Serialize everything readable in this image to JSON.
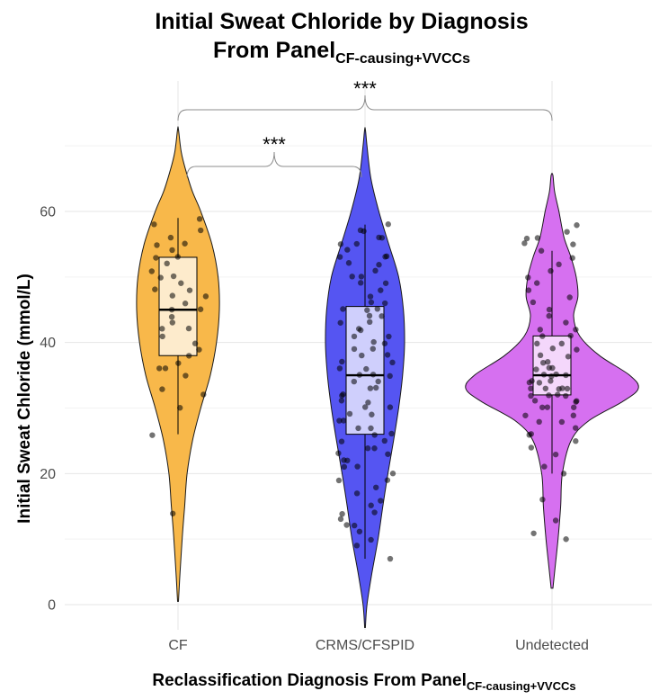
{
  "chart_data": {
    "type": "violin",
    "title_main": "Initial Sweat Chloride by Diagnosis",
    "title_prefix": "From Panel",
    "title_subscript": "CF-causing+VVCCs",
    "xlabel_main": "Reclassification Diagnosis From Panel",
    "xlabel_subscript": "CF-causing+VVCCs",
    "ylabel": "Initial Sweat Chloride (mmol/L)",
    "ylim": [
      -3,
      73
    ],
    "yticks": [
      0,
      20,
      40,
      60
    ],
    "categories": [
      "CF",
      "CRMS/CFSPID",
      "Undetected"
    ],
    "colors": [
      "#F8B84A",
      "#5555F2",
      "#D670F0"
    ],
    "groups": [
      {
        "name": "CF",
        "box": {
          "q1": 38,
          "median": 45,
          "q3": 53,
          "whisker_low": 26,
          "whisker_high": 59
        },
        "violin_range": [
          0.5,
          72.5
        ],
        "density": [
          [
            0.5,
            0.01
          ],
          [
            5,
            0.05
          ],
          [
            10,
            0.1
          ],
          [
            15,
            0.16
          ],
          [
            20,
            0.22
          ],
          [
            25,
            0.35
          ],
          [
            30,
            0.55
          ],
          [
            35,
            0.78
          ],
          [
            40,
            0.93
          ],
          [
            45,
            1.0
          ],
          [
            50,
            0.97
          ],
          [
            55,
            0.82
          ],
          [
            60,
            0.55
          ],
          [
            63,
            0.35
          ],
          [
            66,
            0.2
          ],
          [
            69,
            0.08
          ],
          [
            72.5,
            0.01
          ]
        ],
        "points": [
          59,
          58,
          57,
          56,
          55,
          55,
          54,
          53,
          53,
          52,
          51,
          50,
          50,
          49,
          48,
          48,
          47,
          47,
          46,
          45,
          45,
          44,
          43,
          42,
          42,
          41,
          40,
          39,
          38,
          37,
          36,
          36,
          35,
          33,
          32,
          30,
          26,
          14
        ]
      },
      {
        "name": "CRMS/CFSPID",
        "box": {
          "q1": 26,
          "median": 35,
          "q3": 45.5,
          "whisker_low": 7,
          "whisker_high": 58
        },
        "violin_range": [
          -3.5,
          72.5
        ],
        "density": [
          [
            -3.5,
            0.01
          ],
          [
            0,
            0.05
          ],
          [
            5,
            0.18
          ],
          [
            10,
            0.33
          ],
          [
            15,
            0.45
          ],
          [
            20,
            0.58
          ],
          [
            25,
            0.72
          ],
          [
            30,
            0.85
          ],
          [
            35,
            0.95
          ],
          [
            40,
            1.0
          ],
          [
            45,
            0.97
          ],
          [
            50,
            0.85
          ],
          [
            55,
            0.6
          ],
          [
            60,
            0.35
          ],
          [
            65,
            0.15
          ],
          [
            70,
            0.05
          ],
          [
            72.5,
            0.01
          ]
        ],
        "points": [
          58,
          57,
          57,
          56,
          56,
          55,
          55,
          54,
          53,
          53,
          53,
          52,
          52,
          51,
          50,
          50,
          49,
          49,
          48,
          47,
          46,
          46,
          45,
          45,
          45,
          44,
          44,
          43,
          43,
          42,
          42,
          41,
          41,
          40,
          40,
          39,
          39,
          38,
          38,
          37,
          37,
          36,
          36,
          35,
          35,
          35,
          34,
          34,
          33,
          33,
          32,
          32,
          31,
          31,
          30,
          30,
          29,
          29,
          28,
          28,
          27,
          27,
          26,
          26,
          25,
          25,
          24,
          24,
          23,
          23,
          22,
          22,
          21,
          21,
          20,
          19,
          19,
          18,
          17,
          16,
          15,
          14,
          14,
          13,
          12,
          12,
          11,
          10,
          9,
          7
        ]
      },
      {
        "name": "Undetected",
        "box": {
          "q1": 32,
          "median": 35,
          "q3": 41,
          "whisker_low": 20,
          "whisker_high": 54
        },
        "violin_range": [
          2.5,
          65.5
        ],
        "density": [
          [
            2.5,
            0.01
          ],
          [
            5,
            0.03
          ],
          [
            10,
            0.07
          ],
          [
            15,
            0.1
          ],
          [
            20,
            0.12
          ],
          [
            25,
            0.22
          ],
          [
            28,
            0.42
          ],
          [
            31,
            0.82
          ],
          [
            33,
            1.0
          ],
          [
            35,
            0.9
          ],
          [
            38,
            0.55
          ],
          [
            41,
            0.32
          ],
          [
            44,
            0.25
          ],
          [
            47,
            0.3
          ],
          [
            50,
            0.28
          ],
          [
            53,
            0.22
          ],
          [
            56,
            0.14
          ],
          [
            60,
            0.08
          ],
          [
            63,
            0.03
          ],
          [
            65.5,
            0.01
          ]
        ],
        "points": [
          58,
          57,
          56,
          56,
          55,
          55,
          54,
          53,
          52,
          51,
          50,
          49,
          48,
          47,
          46,
          45,
          44,
          43,
          42,
          42,
          41,
          41,
          40,
          40,
          39,
          39,
          38,
          38,
          37,
          37,
          36,
          36,
          36,
          35,
          35,
          35,
          35,
          34,
          34,
          34,
          34,
          33,
          33,
          33,
          33,
          33,
          32,
          32,
          32,
          32,
          31,
          31,
          31,
          30,
          30,
          30,
          29,
          29,
          28,
          28,
          27,
          26,
          26,
          25,
          24,
          23,
          21,
          20,
          16,
          13,
          11,
          10
        ]
      }
    ],
    "comparisons": [
      {
        "from": "CF",
        "to": "CRMS/CFSPID",
        "label": "***"
      },
      {
        "from": "CF",
        "to": "Undetected",
        "label": "***"
      }
    ]
  }
}
